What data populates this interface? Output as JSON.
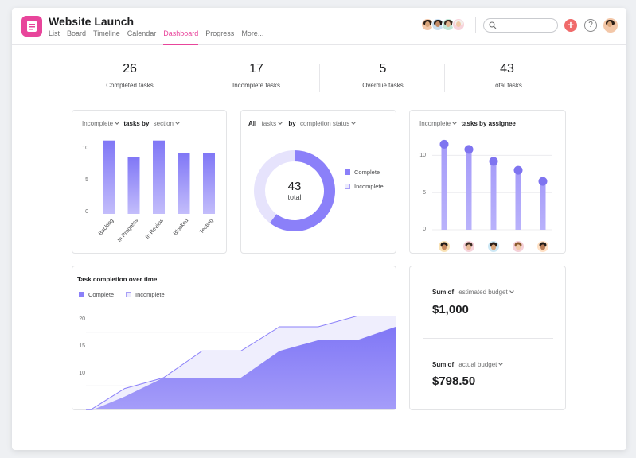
{
  "header": {
    "project_title": "Website Launch",
    "tabs": [
      {
        "label": "List",
        "active": false
      },
      {
        "label": "Board",
        "active": false
      },
      {
        "label": "Timeline",
        "active": false
      },
      {
        "label": "Calendar",
        "active": false
      },
      {
        "label": "Dashboard",
        "active": true
      },
      {
        "label": "Progress",
        "active": false
      },
      {
        "label": "More...",
        "active": false
      }
    ],
    "add_label": "+",
    "help_label": "?"
  },
  "stats": [
    {
      "value": "26",
      "label": "Completed tasks"
    },
    {
      "value": "17",
      "label": "Incomplete tasks"
    },
    {
      "value": "5",
      "label": "Overdue tasks"
    },
    {
      "value": "43",
      "label": "Total tasks"
    }
  ],
  "section_chart": {
    "filter": "Incomplete",
    "title": "tasks by",
    "group": "section"
  },
  "status_chart": {
    "filter": "All",
    "noun": "tasks",
    "by": "by",
    "group": "completion status",
    "center_value": "43",
    "center_label": "total",
    "legend_complete": "Complete",
    "legend_incomplete": "Incomplete"
  },
  "assignee_chart": {
    "filter": "Incomplete",
    "title": "tasks by assignee"
  },
  "completion_chart": {
    "title": "Task completion over time",
    "legend_complete": "Complete",
    "legend_incomplete": "Incomplete"
  },
  "budget": {
    "sum_label": "Sum of",
    "estimated_field": "estimated budget",
    "estimated_value": "$1,000",
    "actual_field": "actual budget",
    "actual_value": "$798.50"
  },
  "colors": {
    "accent_pink": "#e8459b",
    "bar_purple": "#8b80f9",
    "light_purple": "#e3e0fb",
    "add_button": "#f06a6a"
  },
  "chart_data": [
    {
      "type": "bar",
      "categories": [
        "Backlog",
        "In Progress",
        "In Review",
        "Blocked",
        "Testing"
      ],
      "values": [
        12,
        9.3,
        12,
        10,
        10
      ],
      "ylim": [
        0,
        13
      ],
      "yticks": [
        "0",
        "5",
        "10"
      ]
    },
    {
      "type": "pie",
      "categories": [
        "Complete",
        "Incomplete"
      ],
      "values": [
        26,
        17
      ]
    },
    {
      "type": "bar",
      "categories": [
        "assignee-1",
        "assignee-2",
        "assignee-3",
        "assignee-4",
        "assignee-5"
      ],
      "values": [
        11.5,
        10.8,
        9.2,
        8,
        6.5
      ],
      "ylim": [
        0,
        12.5
      ],
      "yticks": [
        "0",
        "5",
        "10"
      ]
    },
    {
      "type": "area",
      "x": [
        0,
        1,
        2,
        3,
        4,
        5,
        6,
        7,
        8
      ],
      "series": [
        {
          "name": "Complete",
          "values": [
            5,
            8,
            11.5,
            11.5,
            11.5,
            16.5,
            18.5,
            18.5,
            21
          ]
        },
        {
          "name": "Incomplete",
          "values": [
            5,
            9.5,
            11.5,
            16.5,
            16.5,
            21,
            21,
            23,
            23
          ]
        }
      ],
      "ylim": [
        5,
        25
      ],
      "yticks": [
        "10",
        "15",
        "20"
      ]
    }
  ]
}
